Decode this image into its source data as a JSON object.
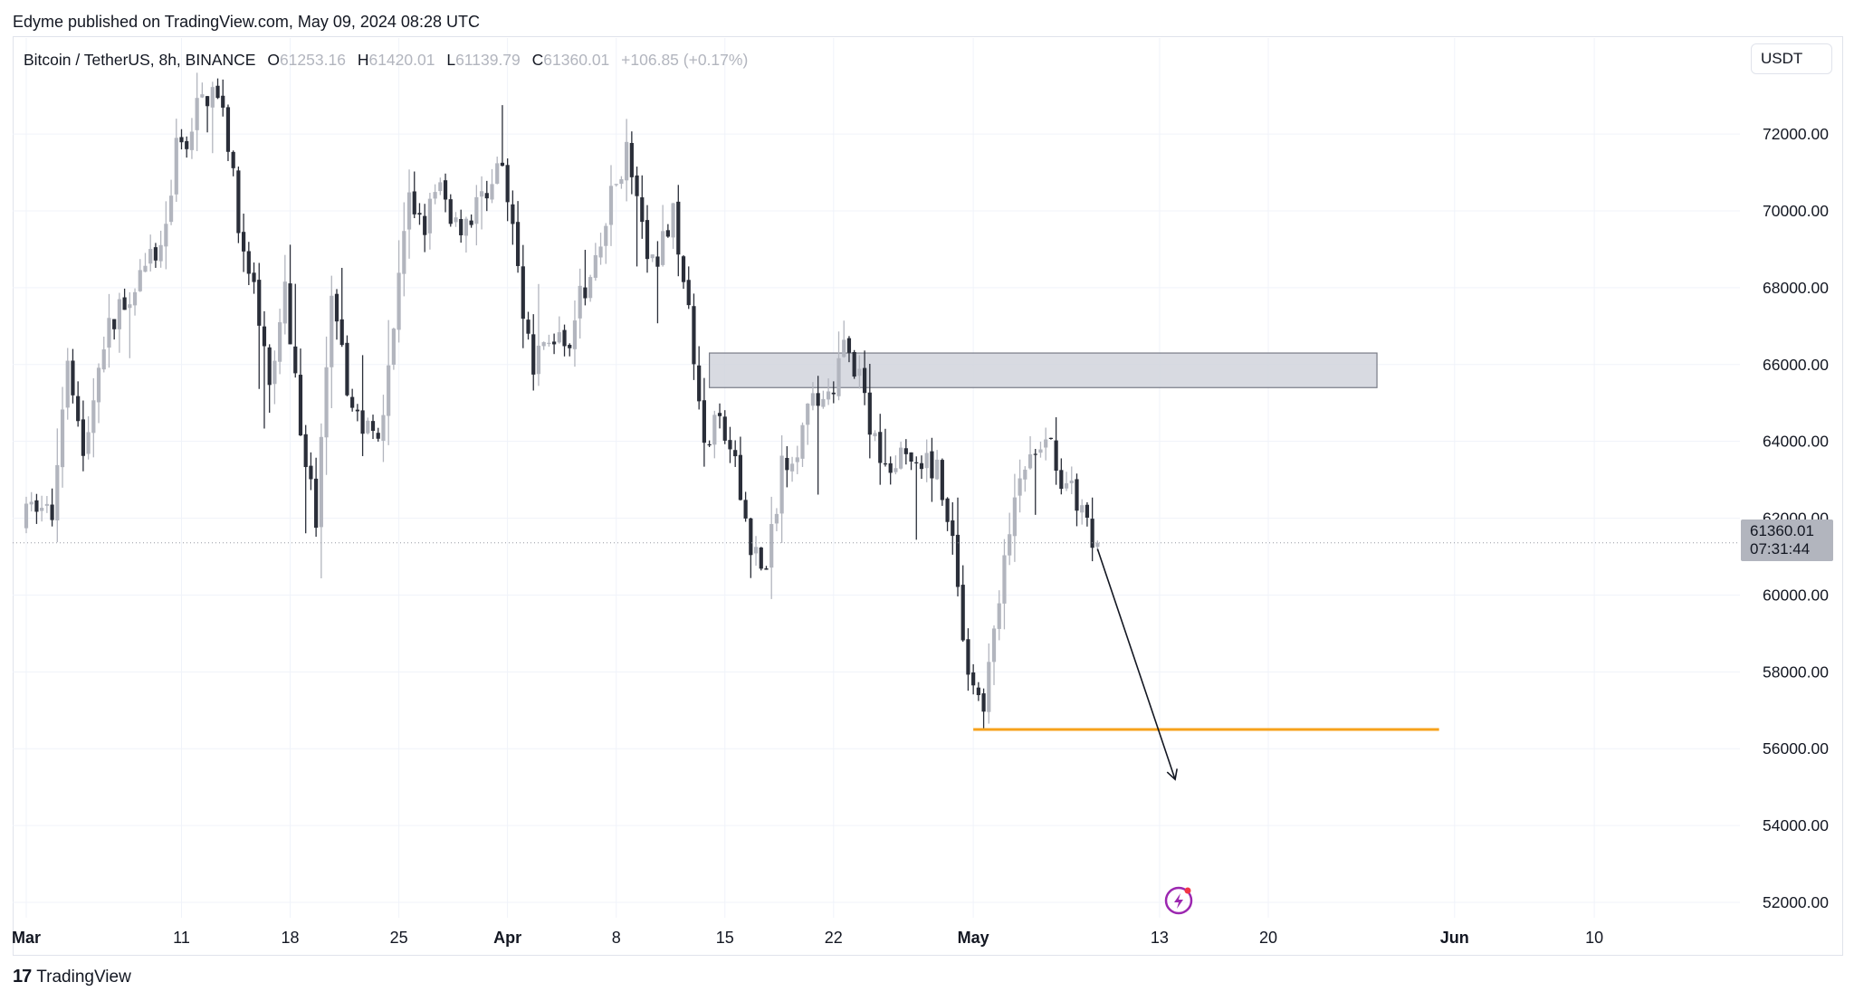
{
  "header": {
    "published": "Edyme published on TradingView.com, May 09, 2024 08:28 UTC"
  },
  "legend": {
    "symbol": "Bitcoin / TetherUS, 8h, BINANCE",
    "o_label": "O",
    "o_value": "61253.16",
    "h_label": "H",
    "h_value": "61420.01",
    "l_label": "L",
    "l_value": "61139.79",
    "c_label": "C",
    "c_value": "61360.01",
    "change": "+106.85 (+0.17%)"
  },
  "currency_button": "USDT",
  "last_price": {
    "value": "61360.01",
    "countdown": "07:31:44"
  },
  "footer": {
    "brand": "TradingView",
    "logo_text": "17"
  },
  "colors": {
    "bull": "#b2b5be",
    "bear": "#2a2e39",
    "grid": "#f0f3fa",
    "zone_fill": "#d1d4dc",
    "zone_border": "#787b86",
    "support": "#f7a21b",
    "arrow": "#131722",
    "flash_icon": "#9c27b0"
  },
  "chart_data": {
    "type": "candlestick",
    "symbol": "BTCUSDT",
    "interval": "8h",
    "ylim": [
      51600,
      74500
    ],
    "y_ticks": [
      "52000.00",
      "54000.00",
      "56000.00",
      "58000.00",
      "60000.00",
      "62000.00",
      "64000.00",
      "66000.00",
      "68000.00",
      "70000.00",
      "72000.00"
    ],
    "x_ticks": [
      {
        "label": "Mar",
        "date": "2024-03-01",
        "bold": true
      },
      {
        "label": "11",
        "date": "2024-03-11",
        "bold": false
      },
      {
        "label": "18",
        "date": "2024-03-18",
        "bold": false
      },
      {
        "label": "25",
        "date": "2024-03-25",
        "bold": false
      },
      {
        "label": "Apr",
        "date": "2024-04-01",
        "bold": true
      },
      {
        "label": "8",
        "date": "2024-04-08",
        "bold": false
      },
      {
        "label": "15",
        "date": "2024-04-15",
        "bold": false
      },
      {
        "label": "22",
        "date": "2024-04-22",
        "bold": false
      },
      {
        "label": "May",
        "date": "2024-05-01",
        "bold": true
      },
      {
        "label": "13",
        "date": "2024-05-13",
        "bold": false
      },
      {
        "label": "20",
        "date": "2024-05-20",
        "bold": false
      },
      {
        "label": "Jun",
        "date": "2024-06-01",
        "bold": true
      },
      {
        "label": "10",
        "date": "2024-06-10",
        "bold": false
      }
    ],
    "start_date": "2024-03-01",
    "anchors": [
      [
        "2024-03-01",
        61800
      ],
      [
        "2024-03-02",
        62400
      ],
      [
        "2024-03-03",
        62100
      ],
      [
        "2024-03-04",
        66500
      ],
      [
        "2024-03-05",
        63500
      ],
      [
        "2024-03-06",
        66000
      ],
      [
        "2024-03-07",
        67300
      ],
      [
        "2024-03-08",
        68000
      ],
      [
        "2024-03-09",
        68400
      ],
      [
        "2024-03-10",
        69000
      ],
      [
        "2024-03-11",
        71500
      ],
      [
        "2024-03-12",
        72300
      ],
      [
        "2024-03-13",
        73100
      ],
      [
        "2024-03-14",
        73000
      ],
      [
        "2024-03-15",
        69500
      ],
      [
        "2024-03-16",
        68000
      ],
      [
        "2024-03-17",
        65200
      ],
      [
        "2024-03-18",
        67800
      ],
      [
        "2024-03-19",
        64500
      ],
      [
        "2024-03-20",
        62000
      ],
      [
        "2024-03-21",
        67500
      ],
      [
        "2024-03-22",
        65400
      ],
      [
        "2024-03-23",
        64300
      ],
      [
        "2024-03-24",
        64200
      ],
      [
        "2024-03-25",
        67000
      ],
      [
        "2024-03-26",
        70200
      ],
      [
        "2024-03-27",
        69800
      ],
      [
        "2024-03-28",
        70500
      ],
      [
        "2024-03-29",
        69700
      ],
      [
        "2024-03-30",
        69900
      ],
      [
        "2024-03-31",
        70500
      ],
      [
        "2024-04-01",
        71000
      ],
      [
        "2024-04-02",
        68500
      ],
      [
        "2024-04-03",
        65800
      ],
      [
        "2024-04-04",
        66800
      ],
      [
        "2024-04-05",
        66500
      ],
      [
        "2024-04-06",
        67600
      ],
      [
        "2024-04-07",
        68400
      ],
      [
        "2024-04-08",
        70300
      ],
      [
        "2024-04-09",
        71600
      ],
      [
        "2024-04-10",
        69300
      ],
      [
        "2024-04-11",
        68500
      ],
      [
        "2024-04-12",
        70300
      ],
      [
        "2024-04-13",
        67200
      ],
      [
        "2024-04-14",
        63800
      ],
      [
        "2024-04-15",
        64500
      ],
      [
        "2024-04-16",
        63200
      ],
      [
        "2024-04-17",
        61400
      ],
      [
        "2024-04-18",
        60500
      ],
      [
        "2024-04-19",
        63500
      ],
      [
        "2024-04-20",
        64000
      ],
      [
        "2024-04-21",
        64900
      ],
      [
        "2024-04-22",
        65200
      ],
      [
        "2024-04-23",
        66500
      ],
      [
        "2024-04-24",
        65600
      ],
      [
        "2024-04-25",
        63900
      ],
      [
        "2024-04-26",
        63600
      ],
      [
        "2024-04-27",
        63300
      ],
      [
        "2024-04-28",
        63200
      ],
      [
        "2024-04-29",
        63500
      ],
      [
        "2024-04-30",
        61500
      ],
      [
        "2024-05-01",
        57600
      ],
      [
        "2024-05-02",
        57300
      ],
      [
        "2024-05-03",
        59700
      ],
      [
        "2024-05-04",
        62600
      ],
      [
        "2024-05-05",
        63600
      ],
      [
        "2024-05-06",
        64300
      ],
      [
        "2024-05-07",
        63200
      ],
      [
        "2024-05-08",
        62300
      ],
      [
        "2024-05-09",
        61360
      ]
    ],
    "last_candle": {
      "date": "2024-05-09",
      "open": 61253.16,
      "high": 61420.01,
      "low": 61139.79,
      "close": 61360.01,
      "change": 106.85,
      "change_pct": 0.17
    },
    "resistance_zone": {
      "y_min": 65400,
      "y_max": 66300,
      "x_start": "2024-04-14",
      "x_end": "2024-05-27"
    },
    "support_line": {
      "y": 56500,
      "x_start": "2024-05-01",
      "x_end": "2024-05-31"
    },
    "projection_arrow": {
      "from": {
        "date": "2024-05-09",
        "price": 61200
      },
      "to": {
        "date": "2024-05-14",
        "price": 55200
      }
    }
  }
}
